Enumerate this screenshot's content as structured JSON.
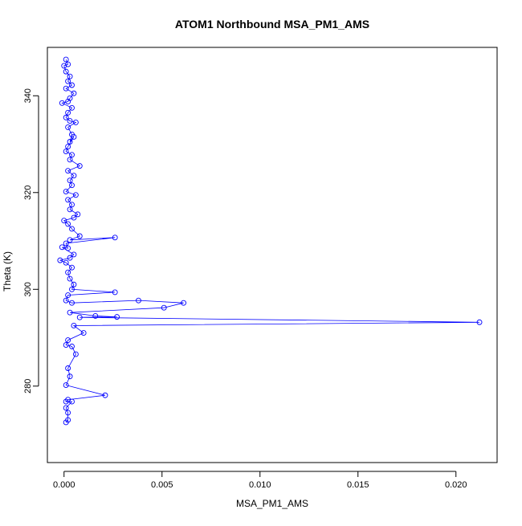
{
  "chart_data": {
    "type": "scatter",
    "title": "ATOM1 Northbound MSA_PM1_AMS",
    "xlabel": "MSA_PM1_AMS",
    "ylabel": "Theta (K)",
    "xlim": [
      -0.00085,
      0.0221
    ],
    "ylim": [
      264.2,
      350
    ],
    "x_ticks": [
      0.0,
      0.005,
      0.01,
      0.015,
      0.02
    ],
    "x_tick_labels": [
      "0.000",
      "0.005",
      "0.010",
      "0.015",
      "0.020"
    ],
    "y_ticks": [
      280,
      300,
      320,
      340
    ],
    "y_tick_labels": [
      "280",
      "300",
      "320",
      "340"
    ],
    "grid": false,
    "legend": "none",
    "point_style": "open-circle-connected",
    "series": [
      {
        "color": "#0000ff",
        "points": [
          [
            0.0001,
            347.5
          ],
          [
            0.0002,
            346.5
          ],
          [
            0.0,
            346.2
          ],
          [
            0.0001,
            345.0
          ],
          [
            0.0003,
            344.0
          ],
          [
            0.0002,
            343.0
          ],
          [
            0.0004,
            342.2
          ],
          [
            0.0001,
            341.5
          ],
          [
            0.0005,
            340.5
          ],
          [
            0.0003,
            339.5
          ],
          [
            0.0002,
            338.8
          ],
          [
            -0.0001,
            338.5
          ],
          [
            0.0004,
            337.5
          ],
          [
            0.0002,
            336.5
          ],
          [
            0.0001,
            335.5
          ],
          [
            0.0003,
            334.8
          ],
          [
            0.0006,
            334.5
          ],
          [
            0.0002,
            333.5
          ],
          [
            0.0004,
            332.0
          ],
          [
            0.0003,
            330.5
          ],
          [
            0.0005,
            331.5
          ],
          [
            0.0002,
            329.5
          ],
          [
            0.0001,
            328.5
          ],
          [
            0.0004,
            327.8
          ],
          [
            0.0003,
            326.8
          ],
          [
            0.0008,
            325.5
          ],
          [
            0.0002,
            324.5
          ],
          [
            0.0005,
            323.5
          ],
          [
            0.0003,
            322.5
          ],
          [
            0.0004,
            321.5
          ],
          [
            0.0001,
            320.2
          ],
          [
            0.0006,
            319.5
          ],
          [
            0.0002,
            318.5
          ],
          [
            0.0004,
            317.5
          ],
          [
            0.0003,
            316.5
          ],
          [
            0.0007,
            315.5
          ],
          [
            0.0005,
            314.8
          ],
          [
            0.0,
            314.2
          ],
          [
            0.0002,
            313.5
          ],
          [
            0.0004,
            312.5
          ],
          [
            0.0008,
            311.0
          ],
          [
            0.0003,
            310.2
          ],
          [
            0.0026,
            310.7
          ],
          [
            0.0001,
            309.5
          ],
          [
            0.0002,
            308.5
          ],
          [
            -0.0001,
            308.7
          ],
          [
            0.0005,
            307.2
          ],
          [
            0.0003,
            306.5
          ],
          [
            -0.0002,
            306.0
          ],
          [
            0.0001,
            305.5
          ],
          [
            0.0004,
            304.5
          ],
          [
            0.0002,
            303.5
          ],
          [
            0.0003,
            302.2
          ],
          [
            0.0005,
            301.0
          ],
          [
            0.0004,
            300.0
          ],
          [
            0.0026,
            299.4
          ],
          [
            0.0002,
            298.8
          ],
          [
            0.0001,
            297.7
          ],
          [
            0.0004,
            297.2
          ],
          [
            0.0038,
            297.7
          ],
          [
            0.0061,
            297.2
          ],
          [
            0.0051,
            296.2
          ],
          [
            0.0003,
            295.2
          ],
          [
            0.0016,
            294.5
          ],
          [
            0.0027,
            294.3
          ],
          [
            0.0008,
            294.2
          ],
          [
            0.0212,
            293.2
          ],
          [
            0.0005,
            292.5
          ],
          [
            0.001,
            291.0
          ],
          [
            0.0002,
            289.5
          ],
          [
            0.0001,
            288.5
          ],
          [
            0.0004,
            288.2
          ],
          [
            0.0006,
            286.6
          ],
          [
            0.0002,
            283.7
          ],
          [
            0.0003,
            282.0
          ],
          [
            0.0001,
            280.2
          ],
          [
            0.0021,
            278.1
          ],
          [
            0.0002,
            277.2
          ],
          [
            0.0001,
            276.8
          ],
          [
            0.0004,
            276.8
          ],
          [
            0.0001,
            275.5
          ],
          [
            0.0002,
            274.5
          ],
          [
            0.0002,
            273.0
          ],
          [
            0.0001,
            272.5
          ]
        ]
      }
    ]
  }
}
